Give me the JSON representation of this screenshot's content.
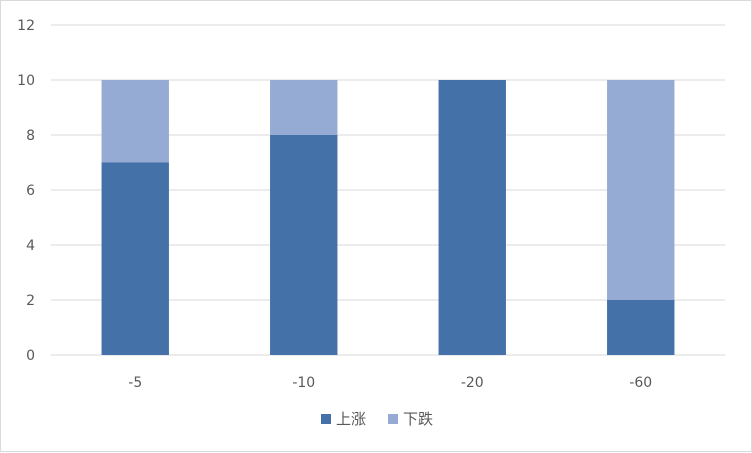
{
  "chart_data": {
    "type": "bar",
    "stacked": true,
    "title": "",
    "xlabel": "",
    "ylabel": "",
    "categories": [
      "-5",
      "-10",
      "-20",
      "-60"
    ],
    "series": [
      {
        "name": "上涨",
        "values": [
          7,
          8,
          10,
          2
        ],
        "color": "#4472a8"
      },
      {
        "name": "下跌",
        "values": [
          3,
          2,
          0,
          8
        ],
        "color": "#95abd3"
      }
    ],
    "ylim": [
      0,
      12
    ],
    "yticks": [
      0,
      2,
      4,
      6,
      8,
      10,
      12
    ],
    "grid": true,
    "legend_position": "bottom",
    "colors": {
      "grid": "#d9d9d9",
      "axis_text": "#595959"
    }
  }
}
